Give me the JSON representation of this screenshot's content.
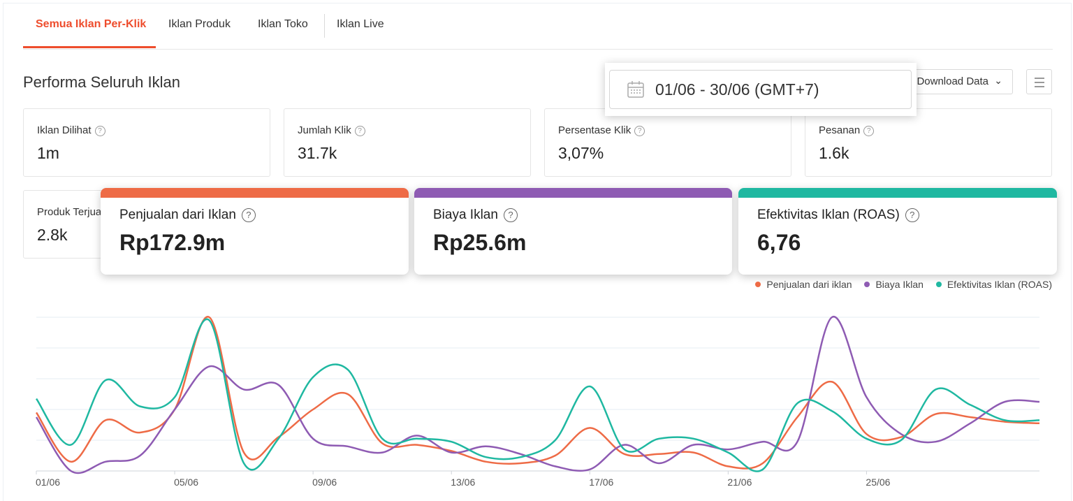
{
  "tabs": [
    {
      "label": "Semua Iklan Per-Klik",
      "active": true
    },
    {
      "label": "Iklan Produk",
      "active": false
    },
    {
      "label": "Iklan Toko",
      "active": false
    },
    {
      "label": "Iklan Live",
      "active": false
    }
  ],
  "section_title": "Performa Seluruh Iklan",
  "date_range": "01/06 - 30/06 (GMT+7)",
  "download_label": "Download Data",
  "metrics": [
    {
      "label": "Iklan Dilihat",
      "value": "1m"
    },
    {
      "label": "Jumlah Klik",
      "value": "31.7k"
    },
    {
      "label": "Persentase Klik",
      "value": "3,07%"
    },
    {
      "label": "Pesanan",
      "value": "1.6k"
    },
    {
      "label": "Produk Terjual",
      "value": "2.8k"
    }
  ],
  "highlight_metrics": [
    {
      "label": "Penjualan dari Iklan",
      "value": "Rp172.9m",
      "color": "#ee6b46"
    },
    {
      "label": "Biaya Iklan",
      "value": "Rp25.6m",
      "color": "#8e5bb3"
    },
    {
      "label": "Efektivitas Iklan (ROAS)",
      "value": "6,76",
      "color": "#1fb8a1"
    }
  ],
  "legend": [
    {
      "label": "Penjualan dari iklan",
      "color": "#ee6b46"
    },
    {
      "label": "Biaya Iklan",
      "color": "#8e5bb3"
    },
    {
      "label": "Efektivitas Iklan (ROAS)",
      "color": "#1fb8a1"
    }
  ],
  "chart_data": {
    "type": "line",
    "x_tick_labels": [
      "01/06",
      "05/06",
      "09/06",
      "13/06",
      "17/06",
      "21/06",
      "25/06"
    ],
    "days": [
      1,
      2,
      3,
      4,
      5,
      6,
      7,
      8,
      9,
      10,
      11,
      12,
      13,
      14,
      15,
      16,
      17,
      18,
      19,
      20,
      21,
      22,
      23,
      24,
      25,
      26,
      27,
      28,
      29,
      30
    ],
    "y_range": [
      0,
      100
    ],
    "series": [
      {
        "name": "Penjualan dari iklan",
        "color": "#ee6b46",
        "values": [
          38,
          6,
          33,
          25,
          40,
          100,
          12,
          22,
          40,
          50,
          18,
          17,
          13,
          6,
          5,
          10,
          28,
          11,
          11,
          12,
          3,
          5,
          35,
          58,
          24,
          22,
          37,
          35,
          32,
          31
        ]
      },
      {
        "name": "Biaya Iklan",
        "color": "#8e5bb3",
        "values": [
          35,
          0,
          6,
          10,
          40,
          68,
          53,
          56,
          21,
          16,
          12,
          23,
          12,
          16,
          11,
          3,
          1,
          17,
          5,
          17,
          14,
          19,
          19,
          100,
          48,
          24,
          19,
          31,
          45,
          45
        ]
      },
      {
        "name": "Efektivitas Iklan (ROAS)",
        "color": "#1fb8a1",
        "values": [
          47,
          17,
          59,
          42,
          48,
          98,
          5,
          21,
          61,
          66,
          21,
          21,
          19,
          9,
          9,
          20,
          55,
          14,
          21,
          21,
          12,
          1,
          44,
          39,
          21,
          20,
          53,
          43,
          33,
          33
        ]
      }
    ]
  }
}
